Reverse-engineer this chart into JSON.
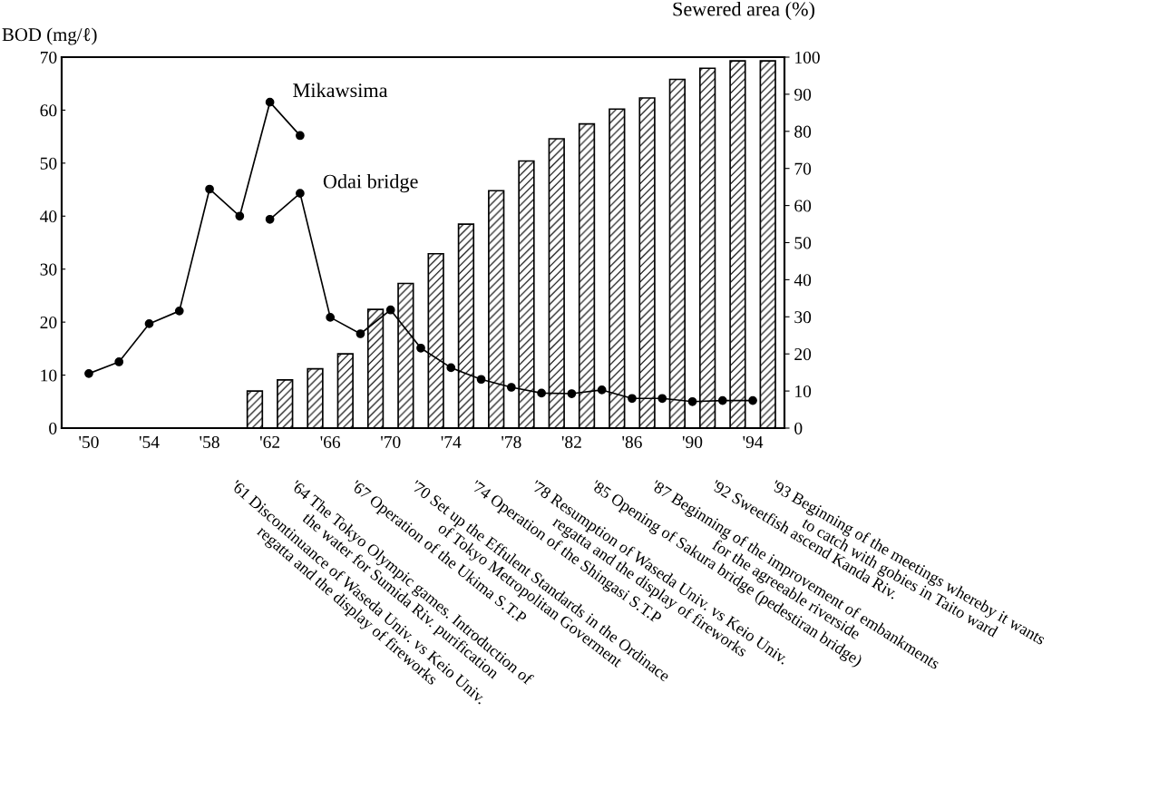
{
  "chart_data": {
    "type": "line",
    "ylabel": "BOD (mg/ℓ)",
    "y2label": "Sewered area (%)",
    "xlim": [
      1948.2,
      1996.1
    ],
    "xticks": [
      {
        "value": 1950,
        "label": "'50"
      },
      {
        "value": 1954,
        "label": "'54"
      },
      {
        "value": 1958,
        "label": "'58"
      },
      {
        "value": 1962,
        "label": "'62"
      },
      {
        "value": 1966,
        "label": "'66"
      },
      {
        "value": 1970,
        "label": "'70"
      },
      {
        "value": 1974,
        "label": "'74"
      },
      {
        "value": 1978,
        "label": "'78"
      },
      {
        "value": 1982,
        "label": "'82"
      },
      {
        "value": 1986,
        "label": "'86"
      },
      {
        "value": 1990,
        "label": "'90"
      },
      {
        "value": 1994,
        "label": "'94"
      }
    ],
    "ylim": [
      0,
      70
    ],
    "yticks": [
      0,
      10,
      20,
      30,
      40,
      50,
      60,
      70
    ],
    "y2lim": [
      0,
      100
    ],
    "y2ticks": [
      0,
      10,
      20,
      30,
      40,
      50,
      60,
      70,
      80,
      90,
      100
    ],
    "grid": false,
    "marker": "circle",
    "line_style": "solid",
    "series": [
      {
        "type": "bar",
        "axis": "y2",
        "color": "#000000",
        "x": [
          1961,
          1963,
          1965,
          1967,
          1969,
          1971,
          1973,
          1975,
          1977,
          1979,
          1981,
          1983,
          1985,
          1987,
          1989,
          1991,
          1993,
          1995
        ],
        "values": [
          10,
          13,
          16,
          20,
          32,
          39,
          47,
          55,
          64,
          72,
          78,
          82,
          86,
          89,
          94,
          97,
          99,
          99
        ]
      },
      {
        "name": "Mikawsima",
        "color": "#000000",
        "x": [
          1950,
          1952,
          1954,
          1956,
          1958,
          1960,
          1962,
          1964
        ],
        "values": [
          10.3,
          12.5,
          19.7,
          22.1,
          45.1,
          40,
          61.5,
          55.2
        ]
      },
      {
        "name": "Odai bridge",
        "color": "#000000",
        "x": [
          1962,
          1964,
          1966,
          1968,
          1970,
          1972,
          1974,
          1976,
          1978,
          1980,
          1982,
          1984,
          1986,
          1988,
          1990,
          1992,
          1994
        ],
        "values": [
          39.4,
          44.3,
          20.9,
          17.8,
          22.3,
          15.1,
          11.4,
          9.2,
          7.7,
          6.6,
          6.5,
          7.2,
          5.6,
          5.6,
          5.0,
          5.2,
          5.2
        ]
      }
    ],
    "annotations": [
      "'61 Discontinuance of Waseda Univ. vs Keio Univ.\nregatta and the display of fireworks",
      "'64 The Tokyo Olympic games. Introduction of\nthe water for Sumida Riv. purification",
      "'67 Operation of the Ukima S.T.P",
      "'70 Set up the Effulent Standards in the Ordinace\nof Tokyo Metropolitan Goverment",
      "'74 Operation of the Shingasi S.T.P",
      "'78 Resumption of Waseda Univ. vs Keio Univ.\nregatta and the display of fireworks",
      "'85 Opening of Sakura bridge (pedestiran bridge)",
      "'87 Beginning of the improvement of embankments\nfor the agreeable riverside",
      "'92 Sweetfish ascend Kanda Riv.",
      "'93 Beginning of the meetings whereby it wants\nto catch with gobies in Taito ward"
    ]
  }
}
